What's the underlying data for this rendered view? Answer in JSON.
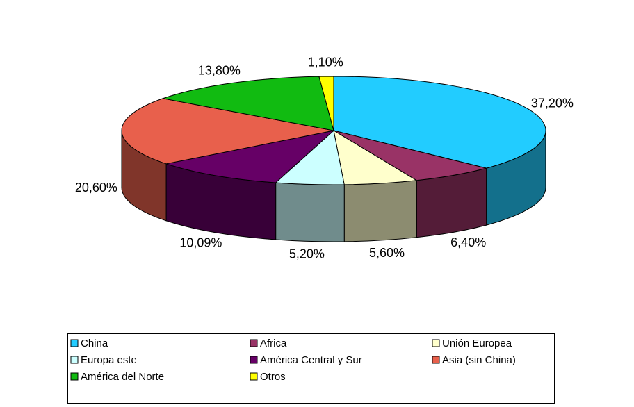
{
  "chart_data": {
    "type": "pie3d",
    "categories": [
      "China",
      "Africa",
      "Unión Europea",
      "Europa este",
      "América Central y Sur",
      "Asia (sin China)",
      "América del Norte",
      "Otros"
    ],
    "values": [
      37.2,
      6.4,
      5.6,
      5.2,
      10.09,
      20.6,
      13.8,
      1.1
    ],
    "value_labels": [
      "37,20%",
      "6,40%",
      "5,60%",
      "5,20%",
      "10,09%",
      "20,60%",
      "13,80%",
      "1,10%"
    ],
    "colors": [
      "#22ccff",
      "#993366",
      "#ffffcc",
      "#ccffff",
      "#660066",
      "#e8604c",
      "#11bb11",
      "#ffff00"
    ],
    "legend": "bottom"
  }
}
